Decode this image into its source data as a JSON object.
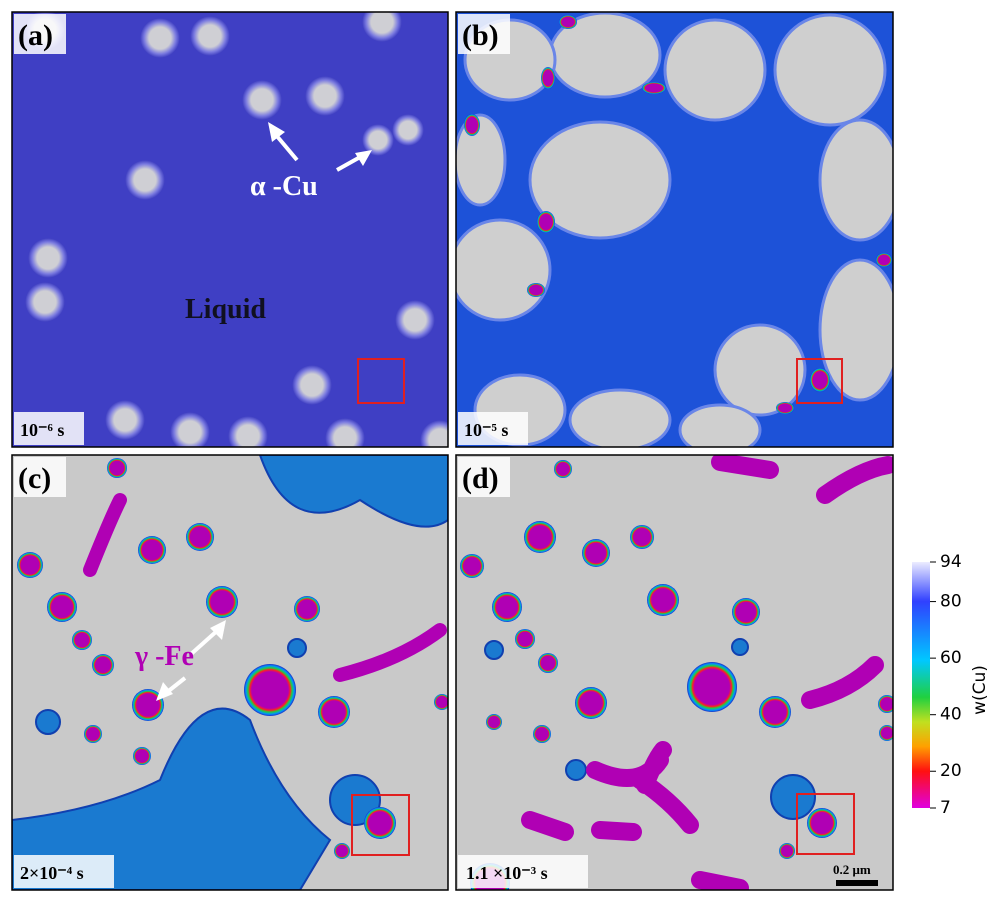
{
  "panels": [
    {
      "label": "(a)",
      "time": "10⁻⁶ s"
    },
    {
      "label": "(b)",
      "time": "10⁻⁵ s"
    },
    {
      "label": "(c)",
      "time": "2×10⁻⁴ s"
    },
    {
      "label": "(d)",
      "time": "1.1 ×10⁻³ s"
    }
  ],
  "annotations": {
    "alpha": "α -Cu",
    "liquid": "Liquid",
    "gamma": "γ -Fe",
    "scale": "0.2 μm"
  },
  "colorbar": {
    "title": "w(Cu)",
    "ticks": [
      94,
      80,
      60,
      40,
      20,
      7
    ]
  }
}
